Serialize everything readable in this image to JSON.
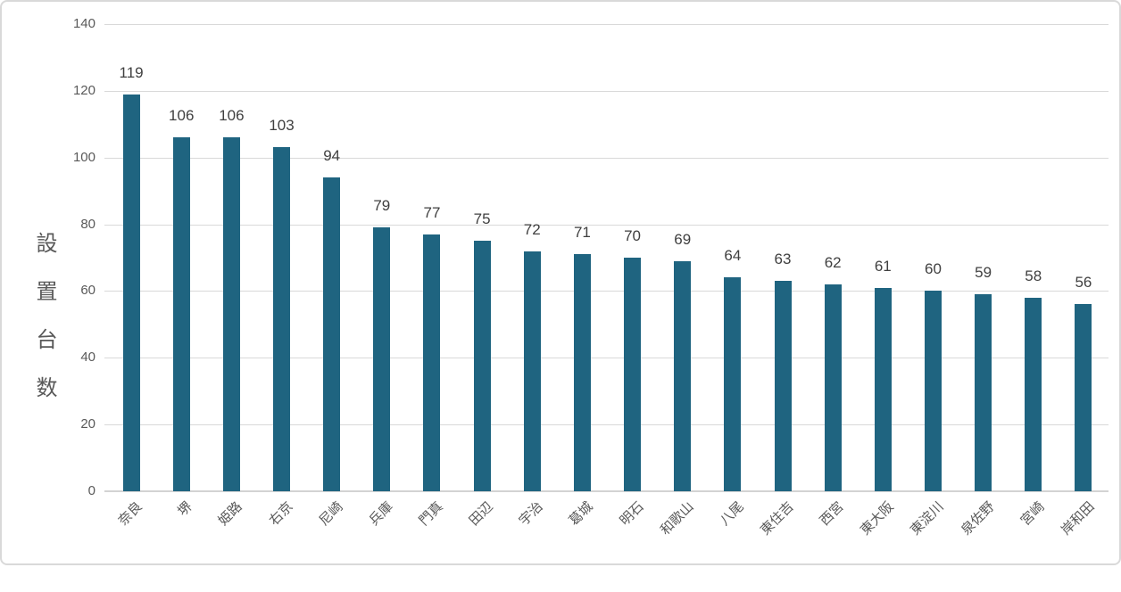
{
  "chart_data": {
    "type": "bar",
    "title": "",
    "xlabel": "",
    "ylabel": "設置台数",
    "categories": [
      "奈良",
      "堺",
      "姫路",
      "右京",
      "尼崎",
      "兵庫",
      "門真",
      "田辺",
      "宇治",
      "葛城",
      "明石",
      "和歌山",
      "八尾",
      "東住吉",
      "西宮",
      "東大阪",
      "東淀川",
      "泉佐野",
      "宮崎",
      "岸和田"
    ],
    "values": [
      119,
      106,
      106,
      103,
      94,
      79,
      77,
      75,
      72,
      71,
      70,
      69,
      64,
      63,
      62,
      61,
      60,
      59,
      58,
      56
    ],
    "yticks": [
      0,
      20,
      40,
      60,
      80,
      100,
      120,
      140
    ],
    "ylim": [
      0,
      140
    ],
    "grid": true,
    "legend_position": "none",
    "data_labels": true,
    "category_label_rotation_deg": -45
  },
  "colors": {
    "bar": "#1F6480",
    "grid": "#D9D9D9",
    "axis_line": "#D3D3D3",
    "axis_text": "#595959",
    "value_text": "#404040",
    "border": "#D9D9D9",
    "background": "#FFFFFF"
  }
}
